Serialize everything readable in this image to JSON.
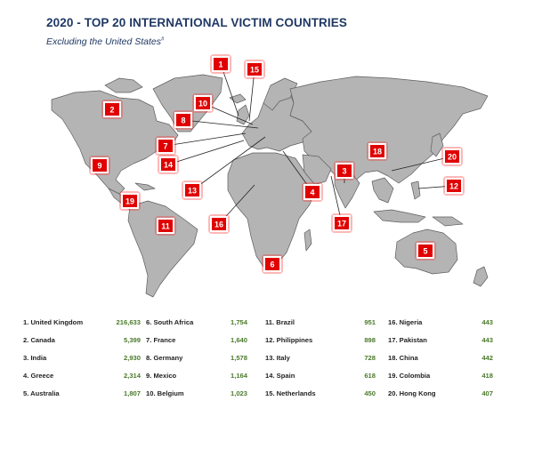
{
  "title": "2020 - TOP 20 INTERNATIONAL VICTIM COUNTRIES",
  "subtitle": "Excluding the United States",
  "subtitle_sup": "#",
  "colors": {
    "land": "#b4b4b4",
    "border": "#5e5e5e",
    "marker": "#e00000",
    "title": "#1f3864",
    "value": "#4a7a2a"
  },
  "countries": [
    {
      "rank": "1",
      "label": "1. United Kingdom",
      "value": "216,633"
    },
    {
      "rank": "2",
      "label": "2. Canada",
      "value": "5,399"
    },
    {
      "rank": "3",
      "label": "3. India",
      "value": "2,930"
    },
    {
      "rank": "4",
      "label": "4. Greece",
      "value": "2,314"
    },
    {
      "rank": "5",
      "label": "5. Australia",
      "value": "1,807"
    },
    {
      "rank": "6",
      "label": "6. South Africa",
      "value": "1,754"
    },
    {
      "rank": "7",
      "label": "7. France",
      "value": "1,640"
    },
    {
      "rank": "8",
      "label": "8. Germany",
      "value": "1,578"
    },
    {
      "rank": "9",
      "label": "9. Mexico",
      "value": "1,164"
    },
    {
      "rank": "10",
      "label": "10. Belgium",
      "value": "1,023"
    },
    {
      "rank": "11",
      "label": "11. Brazil",
      "value": "951"
    },
    {
      "rank": "12",
      "label": "12. Philippines",
      "value": "898"
    },
    {
      "rank": "13",
      "label": "13. Italy",
      "value": "728"
    },
    {
      "rank": "14",
      "label": "14. Spain",
      "value": "618"
    },
    {
      "rank": "15",
      "label": "15. Netherlands",
      "value": "450"
    },
    {
      "rank": "16",
      "label": "16. Nigeria",
      "value": "443"
    },
    {
      "rank": "17",
      "label": "17. Pakistan",
      "value": "443"
    },
    {
      "rank": "18",
      "label": "18. China",
      "value": "442"
    },
    {
      "rank": "19",
      "label": "19. Colombia",
      "value": "418"
    },
    {
      "rank": "20",
      "label": "20. Hong Kong",
      "value": "407"
    }
  ]
}
